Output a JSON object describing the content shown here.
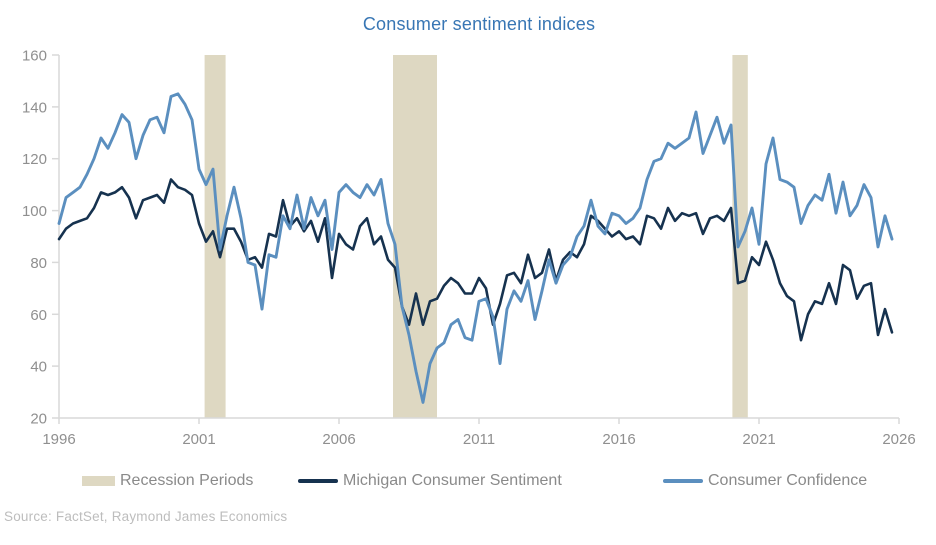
{
  "title": "Consumer sentiment indices",
  "source": "Source: FactSet, Raymond James Economics",
  "legend": {
    "recession": "Recession Periods",
    "michigan": "Michigan Consumer Sentiment",
    "confidence": "Consumer Confidence"
  },
  "colors": {
    "title_text": "#3876b4",
    "michigan_line": "#16324f",
    "confidence_line": "#5b8fbf",
    "recession_band": "#ded8c2",
    "axis_line": "#d9d9d9",
    "tick_label": "#8f8f8f",
    "legend_text": "#8a8a8a",
    "source_text": "#bdbdbd"
  },
  "chart_data": {
    "type": "line",
    "title": "Consumer sentiment indices",
    "xlabel": "",
    "ylabel": "",
    "grid": false,
    "legend_position": "bottom",
    "xlim": [
      1996,
      2026
    ],
    "ylim": [
      20,
      160
    ],
    "x_ticks": [
      1996,
      2001,
      2006,
      2011,
      2016,
      2021,
      2026
    ],
    "y_ticks": [
      20,
      40,
      60,
      80,
      100,
      120,
      140,
      160
    ],
    "x_start": 1996,
    "x_step": 0.25,
    "recession_bands": [
      [
        2001.2,
        2001.95
      ],
      [
        2007.93,
        2009.5
      ],
      [
        2020.05,
        2020.6
      ]
    ],
    "series": [
      {
        "name": "Michigan Consumer Sentiment",
        "color": "#16324f",
        "values": [
          89,
          93,
          95,
          96,
          97,
          101,
          107,
          106,
          107,
          109,
          105,
          97,
          104,
          105,
          106,
          103,
          112,
          109,
          108,
          106,
          95,
          88,
          92,
          82,
          93,
          93,
          88,
          81,
          82,
          78,
          91,
          90,
          104,
          94,
          97,
          92,
          96,
          88,
          97,
          74,
          91,
          87,
          85,
          94,
          97,
          87,
          90,
          81,
          78,
          63,
          56,
          68,
          56,
          65,
          66,
          71,
          74,
          72,
          68,
          68,
          74,
          70,
          56,
          64,
          75,
          76,
          72,
          83,
          74,
          76,
          85,
          73,
          81,
          84,
          82,
          87,
          98,
          96,
          93,
          90,
          92,
          89,
          90,
          87,
          98,
          97,
          93,
          101,
          96,
          99,
          98,
          99,
          91,
          97,
          98,
          96,
          101,
          72,
          73,
          82,
          79,
          88,
          81,
          72,
          67,
          65,
          50,
          60,
          65,
          64,
          72,
          64,
          79,
          77,
          66,
          71,
          72,
          52,
          62,
          53
        ]
      },
      {
        "name": "Consumer Confidence",
        "color": "#5b8fbf",
        "values": [
          95,
          105,
          107,
          109,
          114,
          120,
          128,
          124,
          130,
          137,
          134,
          120,
          129,
          135,
          136,
          130,
          144,
          145,
          141,
          135,
          116,
          110,
          116,
          85,
          98,
          109,
          97,
          80,
          79,
          62,
          83,
          82,
          98,
          93,
          106,
          93,
          105,
          98,
          104,
          85,
          107,
          110,
          107,
          105,
          110,
          106,
          112,
          95,
          87,
          63,
          52,
          38,
          26,
          41,
          47,
          49,
          56,
          58,
          51,
          50,
          65,
          66,
          59,
          41,
          62,
          69,
          65,
          73,
          58,
          69,
          81,
          72,
          79,
          82,
          90,
          94,
          104,
          94,
          91,
          99,
          98,
          95,
          97,
          101,
          112,
          119,
          120,
          126,
          124,
          126,
          128,
          138,
          122,
          129,
          136,
          126,
          133,
          86,
          92,
          101,
          87,
          118,
          128,
          112,
          111,
          109,
          95,
          102,
          106,
          104,
          114,
          99,
          111,
          98,
          102,
          110,
          105,
          86,
          98,
          89
        ]
      }
    ]
  }
}
